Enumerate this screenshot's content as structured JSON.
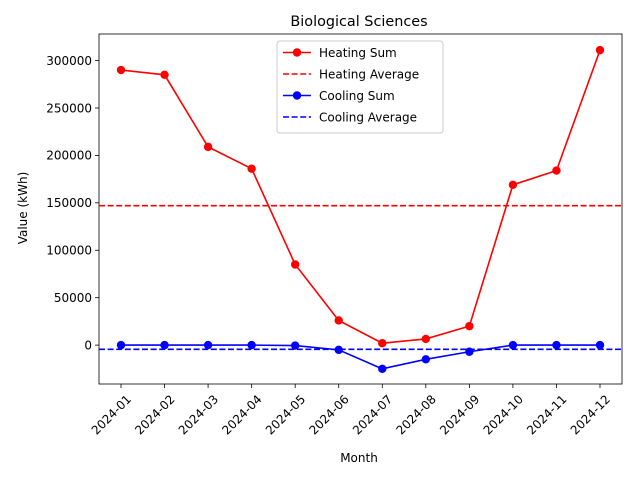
{
  "chart_data": {
    "type": "line",
    "title": "Biological Sciences",
    "xlabel": "Month",
    "ylabel": "Value (kWh)",
    "categories": [
      "2024-01",
      "2024-02",
      "2024-03",
      "2024-04",
      "2024-05",
      "2024-06",
      "2024-07",
      "2024-08",
      "2024-09",
      "2024-10",
      "2024-11",
      "2024-12"
    ],
    "ylim": [
      -41000,
      328000
    ],
    "yticks": [
      0,
      50000,
      100000,
      150000,
      200000,
      250000,
      300000
    ],
    "series": [
      {
        "name": "Heating Sum",
        "color": "#ff0000",
        "style": "solid-marker",
        "values": [
          290000,
          285000,
          209000,
          186000,
          85000,
          26000,
          2000,
          6500,
          20000,
          169000,
          184000,
          311000
        ]
      },
      {
        "name": "Cooling Sum",
        "color": "#0000ff",
        "style": "solid-marker",
        "values": [
          0,
          0,
          0,
          0,
          -500,
          -5000,
          -25000,
          -15000,
          -7000,
          0,
          0,
          0
        ]
      }
    ],
    "reference_lines": [
      {
        "name": "Heating Average",
        "color": "#ff0000",
        "value": 147000
      },
      {
        "name": "Cooling Average",
        "color": "#0000ff",
        "value": -4400
      }
    ],
    "legend": {
      "placement": "top-center",
      "entries": [
        "Heating Sum",
        "Heating Average",
        "Cooling Sum",
        "Cooling Average"
      ]
    },
    "grid": false
  }
}
